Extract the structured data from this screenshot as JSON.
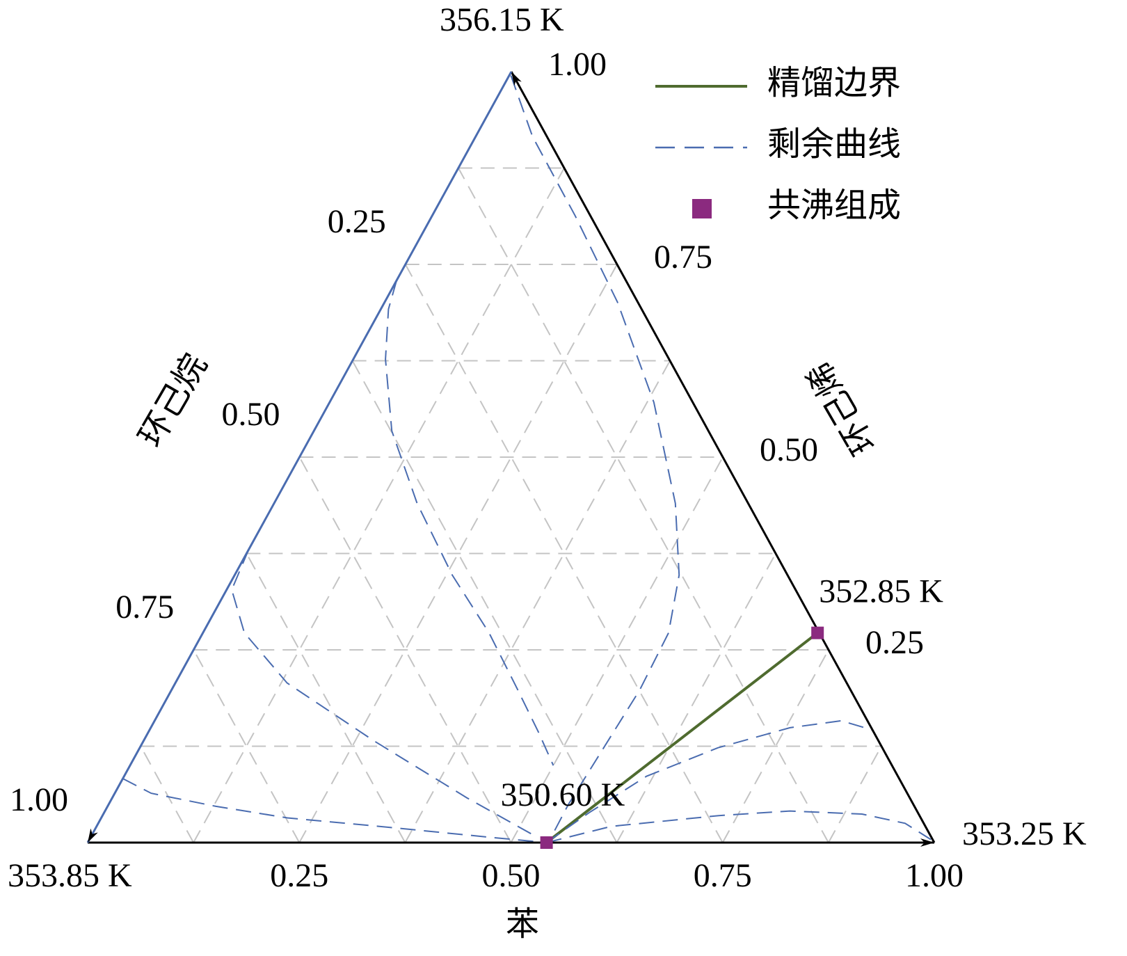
{
  "chart_data": {
    "type": "ternary",
    "axes": [
      {
        "label": "苯",
        "color": "#000000",
        "ticks": [
          0.25,
          {
            "value": 0.5,
            "label": "0.50"
          },
          0.75,
          {
            "value": 1,
            "label": "1.00"
          }
        ]
      },
      {
        "label": "环己烯",
        "color": "#000000",
        "ticks": [
          0.25,
          {
            "value": 0.5,
            "label": "0.50"
          },
          0.75,
          {
            "value": 1,
            "label": "1.00"
          }
        ]
      },
      {
        "label": "环己烷",
        "color": "#4a6cb0",
        "ticks": [
          0.25,
          {
            "value": 0.5,
            "label": "0.50"
          },
          0.75,
          {
            "value": 1,
            "label": "1.00"
          }
        ]
      }
    ],
    "vertices": [
      {
        "label": "353.85 K"
      },
      {
        "label": "353.25 K"
      },
      {
        "label": "356.15 K"
      }
    ],
    "grid_lines": [
      0.125,
      0.25,
      0.375,
      0.5,
      0.625,
      0.75,
      0.875
    ],
    "series": [
      {
        "name": "精馏边界",
        "color": "#4f6b2f",
        "benzene": [
          0.542,
          0.726
        ],
        "cyclohexene": [
          0,
          0.272
        ]
      },
      {
        "name": "剩余曲线",
        "color": "#4a6cb0",
        "curves": [
          {
            "benzene": [
              0,
              0.043,
              0.128,
              0.22,
              0.354,
              0.47,
              0.542
            ],
            "cyclohexene": [
              0.083,
              0.064,
              0.047,
              0.032,
              0.019,
              0.007,
              0
            ]
          },
          {
            "benzene": [
              0,
              0.006,
              0.049,
              0.132,
              0.272,
              0.419,
              0.519
            ],
            "cyclohexene": [
              0.38,
              0.328,
              0.272,
              0.207,
              0.132,
              0.058,
              0.011
            ]
          },
          {
            "benzene": [
              0,
              0.009,
              0.038,
              0.092,
              0.169,
              0.257,
              0.338,
              0.409,
              0.462,
              0.5
            ],
            "cyclohexene": [
              0.729,
              0.692,
              0.627,
              0.534,
              0.44,
              0.347,
              0.272,
              0.198,
              0.142,
              0.1
            ]
          },
          {
            "benzene": [
              0.002,
              0.067,
              0.169,
              0.275,
              0.383,
              0.474,
              0.525,
              0.55,
              0.553,
              0.548,
              0.543,
              0.544
            ],
            "cyclohexene": [
              0.995,
              0.916,
              0.813,
              0.701,
              0.571,
              0.44,
              0.347,
              0.272,
              0.198,
              0.123,
              0.049,
              0.004
            ]
          },
          {
            "benzene": [
              0.542,
              0.573,
              0.617,
              0.683,
              0.755,
              0.811,
              0.854
            ],
            "cyclohexene": [
              0,
              0.039,
              0.086,
              0.123,
              0.149,
              0.158,
              0.146
            ]
          },
          {
            "benzene": [
              0.542,
              0.608,
              0.728,
              0.809,
              0.896,
              0.953,
              0.994
            ],
            "cyclohexene": [
              0,
              0.021,
              0.035,
              0.041,
              0.037,
              0.025,
              0.004
            ]
          }
        ]
      },
      {
        "name": "共沸组成",
        "color": "#8b2a7f",
        "points": [
          {
            "benzene": 0.542,
            "cyclohexene": 0,
            "label": "350.60 K"
          },
          {
            "benzene": 0.726,
            "cyclohexene": 0.272,
            "label": "352.85 K"
          }
        ]
      }
    ]
  }
}
